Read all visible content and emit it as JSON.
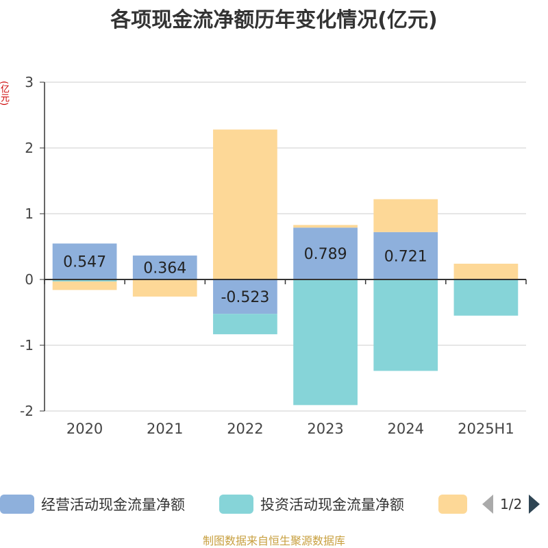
{
  "chart_data": {
    "type": "bar",
    "stacked": true,
    "title": "各项现金流净额历年变化情况(亿元)",
    "unit_label": "(亿元)",
    "categories": [
      "2020",
      "2021",
      "2022",
      "2023",
      "2024",
      "2025H1"
    ],
    "ylim": [
      -2,
      3
    ],
    "yticks": [
      -2,
      -1,
      0,
      1,
      2,
      3
    ],
    "grid": true,
    "series": [
      {
        "name": "经营活动现金流量净额",
        "color": "#8eb0dc",
        "values": [
          0.547,
          0.364,
          -0.523,
          0.789,
          0.721,
          0.0
        ],
        "labels": [
          "0.547",
          "0.364",
          "-0.523",
          "0.789",
          "0.721",
          ""
        ]
      },
      {
        "name": "投资活动现金流量净额",
        "color": "#86d4d8",
        "values": [
          -0.03,
          -0.01,
          -0.31,
          -1.91,
          -1.39,
          -0.55
        ]
      },
      {
        "name": "",
        "color": "#fdd897",
        "values": [
          -0.13,
          -0.25,
          2.28,
          0.04,
          0.5,
          0.24
        ]
      }
    ],
    "legend_position": "bottom"
  },
  "legend": {
    "items": [
      "经营活动现金流量净额",
      "投资活动现金流量净额",
      ""
    ],
    "page": "1/2"
  },
  "source": "制图数据来自恒生聚源数据库"
}
